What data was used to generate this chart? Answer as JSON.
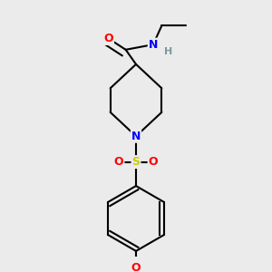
{
  "background_color": "#ebebeb",
  "fig_size": [
    3.0,
    3.0
  ],
  "dpi": 100,
  "bond_color": "#000000",
  "bond_width": 1.5,
  "atom_colors": {
    "O": "#ff0000",
    "N": "#0000ff",
    "S": "#cccc00",
    "H": "#7a9a9a",
    "C": "#000000"
  },
  "font_size": 9,
  "font_size_h": 8
}
